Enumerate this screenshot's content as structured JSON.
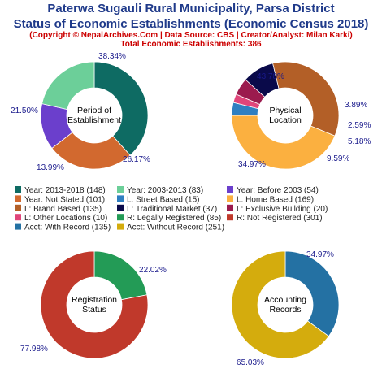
{
  "header": {
    "title_line1": "Paterwa Sugauli Rural Municipality, Parsa District",
    "title_line2": "Status of Economic Establishments (Economic Census 2018)",
    "copyright": "(Copyright © NepalArchives.Com | Data Source: CBS | Creator/Analyst: Milan Karki)",
    "total": "Total Economic Establishments: 386"
  },
  "chart_data": [
    {
      "type": "pie",
      "center_label": [
        "Period of",
        "Establishment"
      ],
      "slices": [
        {
          "label": "Year: 2013-2018",
          "value": 148,
          "pct": "38.34%",
          "color": "#0e6b63"
        },
        {
          "label": "Year: Not Stated",
          "value": 101,
          "pct": "26.17%",
          "color": "#d2692f"
        },
        {
          "label": "Year: Before 2003",
          "value": 54,
          "pct": "13.99%",
          "color": "#6b3fcc"
        },
        {
          "label": "Year: 2003-2013",
          "value": 83,
          "pct": "21.50%",
          "color": "#6ccf99"
        }
      ]
    },
    {
      "type": "pie",
      "center_label": [
        "Physical",
        "Location"
      ],
      "slices": [
        {
          "label": "L: Home Based",
          "value": 169,
          "pct": "43.78%",
          "color": "#fbb040"
        },
        {
          "label": "L: Street Based",
          "value": 15,
          "pct": "3.89%",
          "color": "#2f7fc1"
        },
        {
          "label": "L: Other Locations",
          "value": 10,
          "pct": "2.59%",
          "color": "#e0457a"
        },
        {
          "label": "L: Exclusive Building",
          "value": 20,
          "pct": "5.18%",
          "color": "#9b1b4e"
        },
        {
          "label": "L: Traditional Market",
          "value": 37,
          "pct": "9.59%",
          "color": "#0a0a4a"
        },
        {
          "label": "L: Brand Based",
          "value": 135,
          "pct": "34.97%",
          "color": "#b35f27"
        }
      ]
    },
    {
      "type": "pie",
      "center_label": [
        "Registration",
        "Status"
      ],
      "slices": [
        {
          "label": "R: Legally Registered",
          "value": 85,
          "pct": "22.02%",
          "color": "#239b56"
        },
        {
          "label": "R: Not Registered",
          "value": 301,
          "pct": "77.98%",
          "color": "#c0392b"
        }
      ]
    },
    {
      "type": "pie",
      "center_label": [
        "Accounting",
        "Records"
      ],
      "slices": [
        {
          "label": "Acct: With Record",
          "value": 135,
          "pct": "34.97%",
          "color": "#2471a3"
        },
        {
          "label": "Acct: Without Record",
          "value": 251,
          "pct": "65.03%",
          "color": "#d4ac0d"
        }
      ]
    }
  ],
  "legend": [
    {
      "text": "Year: 2013-2018 (148)",
      "color": "#0e6b63"
    },
    {
      "text": "Year: 2003-2013 (83)",
      "color": "#6ccf99"
    },
    {
      "text": "Year: Before 2003 (54)",
      "color": "#6b3fcc"
    },
    {
      "text": "Year: Not Stated (101)",
      "color": "#d2692f"
    },
    {
      "text": "L: Street Based (15)",
      "color": "#2f7fc1"
    },
    {
      "text": "L: Home Based (169)",
      "color": "#fbb040"
    },
    {
      "text": "L: Brand Based (135)",
      "color": "#b35f27"
    },
    {
      "text": "L: Traditional Market (37)",
      "color": "#0a0a4a"
    },
    {
      "text": "L: Exclusive Building (20)",
      "color": "#9b1b4e"
    },
    {
      "text": "L: Other Locations (10)",
      "color": "#e0457a"
    },
    {
      "text": "R: Legally Registered (85)",
      "color": "#239b56"
    },
    {
      "text": "R: Not Registered (301)",
      "color": "#c0392b"
    },
    {
      "text": "Acct: With Record (135)",
      "color": "#2471a3"
    },
    {
      "text": "Acct: Without Record (251)",
      "color": "#d4ac0d"
    }
  ]
}
